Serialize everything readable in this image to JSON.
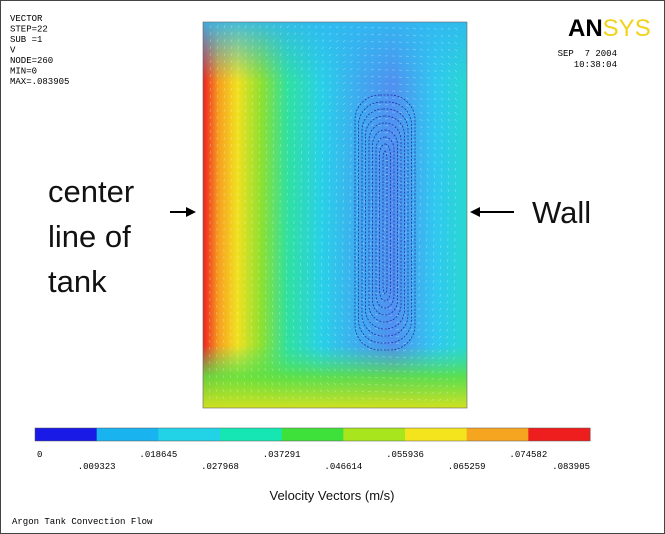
{
  "info": [
    "VECTOR",
    "STEP=22",
    "SUB =1",
    "V",
    "NODE=260",
    "MIN=0",
    "MAX=.083905"
  ],
  "logo": {
    "dark": "AN",
    "light": "SYS"
  },
  "date": "SEP  7 2004",
  "time": "10:38:04",
  "annotations": {
    "left": [
      "center",
      "line of",
      "tank"
    ],
    "right": "Wall"
  },
  "legend": {
    "colors": [
      "#1a1ae6",
      "#19b4f0",
      "#22d2e6",
      "#16e6b4",
      "#3ee03a",
      "#a8e51c",
      "#f4e41e",
      "#f6a521",
      "#ee1e1e"
    ],
    "labels": [
      "0",
      ".009323",
      ".018645",
      ".027968",
      ".037291",
      ".046614",
      ".055936",
      ".065259",
      ".074582",
      ".083905"
    ],
    "title": "Velocity Vectors (m/s)"
  },
  "footer": "Argon Tank Convection Flow"
}
